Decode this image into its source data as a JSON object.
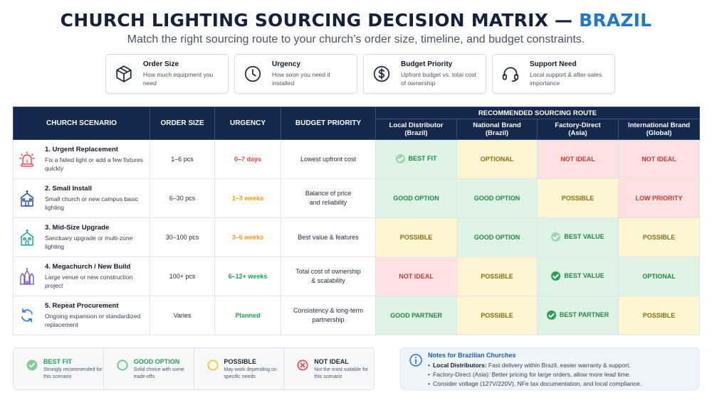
{
  "header": {
    "title_main": "CHURCH LIGHTING SOURCING DECISION MATRIX — ",
    "title_accent": "BRAZIL",
    "subtitle": "Match the right sourcing route to your church’s order size, timeline, and budget constraints."
  },
  "criteria_cards": [
    {
      "icon": "box-icon",
      "title": "Order Size",
      "desc": "How much equipment you need"
    },
    {
      "icon": "clock-icon",
      "title": "Urgency",
      "desc": "How soon you need it installed"
    },
    {
      "icon": "dollar-icon",
      "title": "Budget Priority",
      "desc": "Upfront budget vs. total cost of ownership"
    },
    {
      "icon": "headset-icon",
      "title": "Support Need",
      "desc": "Local support & after-sales importance"
    }
  ],
  "table": {
    "headers": {
      "scenario": "CHURCH SCENARIO",
      "order_size": "ORDER SIZE",
      "urgency": "URGENCY",
      "budget": "BUDGET PRIORITY",
      "route_group": "RECOMMENDED SOURCING ROUTE",
      "routes": [
        {
          "line1": "Local Distributor",
          "line2": "(Brazil)"
        },
        {
          "line1": "National Brand",
          "line2": "(Brazil)"
        },
        {
          "line1": "Factory-Direct",
          "line2": "(Asia)"
        },
        {
          "line1": "International Brand",
          "line2": "(Global)"
        }
      ]
    },
    "rows": [
      {
        "icon": "alarm-icon",
        "name": "1. Urgent Replacement",
        "desc": "Fix a failed light or add a few fixtures quickly",
        "order_size": "1–6 pcs",
        "urgency": "0–7 days",
        "budget_l1": "Lowest upfront cost",
        "budget_l2": "",
        "cells": [
          {
            "label": "BEST FIT",
            "tone": "green",
            "check": "soft"
          },
          {
            "label": "OPTIONAL",
            "tone": "yellow",
            "check": ""
          },
          {
            "label": "NOT IDEAL",
            "tone": "red",
            "check": ""
          },
          {
            "label": "NOT IDEAL",
            "tone": "red",
            "check": ""
          }
        ]
      },
      {
        "icon": "small-church-icon",
        "name": "2. Small Install",
        "desc": "Small church or new campus basic lighting",
        "order_size": "6–30 pcs",
        "urgency": "1–3 weeks",
        "budget_l1": "Balance of price",
        "budget_l2": "and reliability",
        "cells": [
          {
            "label": "GOOD OPTION",
            "tone": "green",
            "check": ""
          },
          {
            "label": "GOOD OPTION",
            "tone": "green",
            "check": ""
          },
          {
            "label": "POSSIBLE",
            "tone": "yellow",
            "check": ""
          },
          {
            "label": "LOW PRIORITY",
            "tone": "red",
            "check": ""
          }
        ]
      },
      {
        "icon": "church-icon",
        "name": "3. Mid-Size Upgrade",
        "desc": "Sanctuary upgrade or multi-zone lighting",
        "order_size": "30–100 pcs",
        "urgency": "3–6 weeks",
        "budget_l1": "Best value & features",
        "budget_l2": "",
        "cells": [
          {
            "label": "POSSIBLE",
            "tone": "yellow",
            "check": ""
          },
          {
            "label": "GOOD OPTION",
            "tone": "green",
            "check": ""
          },
          {
            "label": "BEST VALUE",
            "tone": "green",
            "check": "soft"
          },
          {
            "label": "POSSIBLE",
            "tone": "yellow",
            "check": ""
          }
        ]
      },
      {
        "icon": "cathedral-icon",
        "name": "4. Megachurch / New Build",
        "desc": "Large venue or new construction project",
        "order_size": "100+ pcs",
        "urgency": "6–12+ weeks",
        "budget_l1": "Total cost of ownership",
        "budget_l2": "& scalability",
        "cells": [
          {
            "label": "NOT IDEAL",
            "tone": "red",
            "check": ""
          },
          {
            "label": "POSSIBLE",
            "tone": "yellow",
            "check": ""
          },
          {
            "label": "BEST VALUE",
            "tone": "green",
            "check": "solid"
          },
          {
            "label": "OPTIONAL",
            "tone": "green",
            "check": ""
          }
        ]
      },
      {
        "icon": "refresh-icon",
        "name": "5. Repeat Procurement",
        "desc": "Ongoing expansion or standardized replacement",
        "order_size": "Varies",
        "urgency": "Planned",
        "budget_l1": "Consistency & long-term",
        "budget_l2": "partnership",
        "cells": [
          {
            "label": "GOOD PARTNER",
            "tone": "green",
            "check": ""
          },
          {
            "label": "POSSIBLE",
            "tone": "yellow",
            "check": ""
          },
          {
            "label": "BEST PARTNER",
            "tone": "green",
            "check": "solid"
          },
          {
            "label": "POSSIBLE",
            "tone": "yellow",
            "check": ""
          }
        ]
      }
    ]
  },
  "legend": [
    {
      "icon": "best-fit-icon",
      "title": "BEST FIT",
      "desc": "Strongly recommended for this scenario",
      "color": "#22a352"
    },
    {
      "icon": "good-option-icon",
      "title": "GOOD OPTION",
      "desc": "Solid choice with some trade-offs",
      "color": "#22a352"
    },
    {
      "icon": "possible-icon",
      "title": "POSSIBLE",
      "desc": "May work depending on specific needs",
      "color": "#d4a10f"
    },
    {
      "icon": "not-ideal-icon",
      "title": "NOT IDEAL",
      "desc": "Not the most suitable for this scenario",
      "color": "#e5484d"
    }
  ],
  "notes": {
    "title": "Notes for Brazilian Churches",
    "items": [
      {
        "bold": "Local Distributors:",
        "text": " Fast delivery within Brazil, easier warranty & support."
      },
      {
        "bold": "",
        "text": "Factory-Direct (Asia): Better pricing for large orders, allow more lead time."
      },
      {
        "bold": "",
        "text": "Consider voltage (127V/220V), NFe tax documentation, and local compliance."
      }
    ]
  },
  "colors": {
    "navy": "#14284b",
    "accent": "#1f78c8",
    "green_bg": "#dff3e4",
    "yellow_bg": "#fdf6d1",
    "red_bg": "#fde0e0"
  }
}
